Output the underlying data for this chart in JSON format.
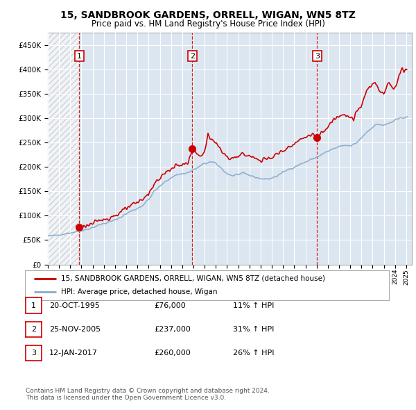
{
  "title": "15, SANDBROOK GARDENS, ORRELL, WIGAN, WN5 8TZ",
  "subtitle": "Price paid vs. HM Land Registry's House Price Index (HPI)",
  "background_color": "#dce6f1",
  "hatch_region_end": 1995.83,
  "ylim": [
    0,
    475000
  ],
  "xlim": [
    1993.0,
    2025.5
  ],
  "yticks": [
    0,
    50000,
    100000,
    150000,
    200000,
    250000,
    300000,
    350000,
    400000,
    450000
  ],
  "ytick_labels": [
    "£0",
    "£50K",
    "£100K",
    "£150K",
    "£200K",
    "£250K",
    "£300K",
    "£350K",
    "£400K",
    "£450K"
  ],
  "xticks": [
    1993,
    1994,
    1995,
    1996,
    1997,
    1998,
    1999,
    2000,
    2001,
    2002,
    2003,
    2004,
    2005,
    2006,
    2007,
    2008,
    2009,
    2010,
    2011,
    2012,
    2013,
    2014,
    2015,
    2016,
    2017,
    2018,
    2019,
    2020,
    2021,
    2022,
    2023,
    2024,
    2025
  ],
  "sale_dates": [
    1995.8,
    2005.9,
    2017.04
  ],
  "sale_prices": [
    76000,
    237000,
    260000
  ],
  "sale_labels": [
    "1",
    "2",
    "3"
  ],
  "red_line_color": "#cc0000",
  "blue_line_color": "#88aacc",
  "sale_marker_color": "#cc0000",
  "vline_colors": [
    "#cc0000",
    "#cc0000",
    "#cc0000"
  ],
  "legend_entries": [
    "15, SANDBROOK GARDENS, ORRELL, WIGAN, WN5 8TZ (detached house)",
    "HPI: Average price, detached house, Wigan"
  ],
  "table_rows": [
    [
      "1",
      "20-OCT-1995",
      "£76,000",
      "11% ↑ HPI"
    ],
    [
      "2",
      "25-NOV-2005",
      "£237,000",
      "31% ↑ HPI"
    ],
    [
      "3",
      "12-JAN-2017",
      "£260,000",
      "26% ↑ HPI"
    ]
  ],
  "footnote": "Contains HM Land Registry data © Crown copyright and database right 2024.\nThis data is licensed under the Open Government Licence v3.0."
}
